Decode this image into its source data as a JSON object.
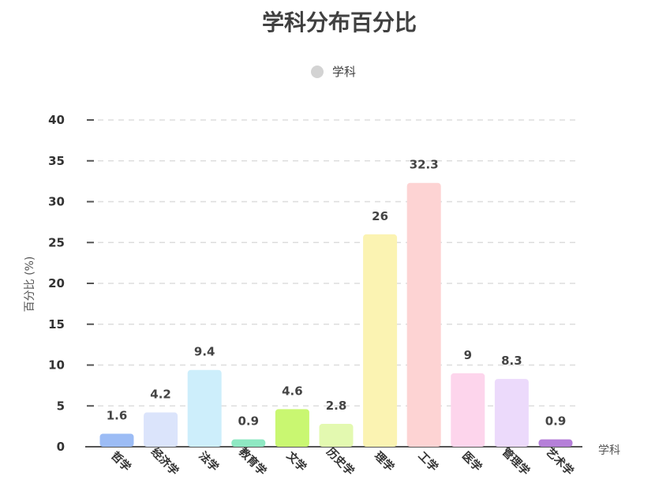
{
  "chart_data": {
    "type": "bar",
    "title": "学科分布百分比",
    "legend": {
      "label": "学科",
      "color": "#d3d3d3",
      "position": "top-center"
    },
    "xlabel": "学科",
    "ylabel": "百分比 (%)",
    "ylim": [
      0,
      40
    ],
    "yticks": [
      0,
      5,
      10,
      15,
      20,
      25,
      30,
      35,
      40
    ],
    "grid": true,
    "categories": [
      "哲学",
      "经济学",
      "法学",
      "教育学",
      "文学",
      "历史学",
      "理学",
      "工学",
      "医学",
      "管理学",
      "艺术学"
    ],
    "values": [
      1.6,
      4.2,
      9.4,
      0.9,
      4.6,
      2.8,
      26,
      32.3,
      9,
      8.3,
      0.9
    ],
    "value_labels": [
      "1.6",
      "4.2",
      "9.4",
      "0.9",
      "4.6",
      "2.8",
      "26",
      "32.3",
      "9",
      "8.3",
      "0.9"
    ],
    "colors": [
      "#9cbcf5",
      "#dbe4fb",
      "#cdeefb",
      "#8ee8c2",
      "#c9f771",
      "#e3f9b0",
      "#fbf3b2",
      "#fdd3d3",
      "#fdd5ec",
      "#ecdafb",
      "#b57fd8"
    ]
  }
}
